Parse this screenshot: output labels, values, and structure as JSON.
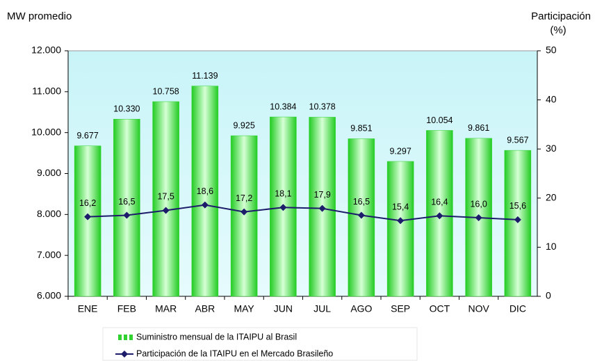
{
  "chart_data": {
    "type": "bar",
    "y_label": "MW promedio",
    "y2_label": [
      "Participación",
      "(%)"
    ],
    "categories": [
      "ENE",
      "FEB",
      "MAR",
      "ABR",
      "MAY",
      "JUN",
      "JUL",
      "AGO",
      "SEP",
      "OCT",
      "NOV",
      "DIC"
    ],
    "series": [
      {
        "name": "Suministro mensual de la ITAIPU al Brasil",
        "type": "bar",
        "axis": "y",
        "color": "#2fd22f",
        "values": [
          9677,
          10330,
          10758,
          11139,
          9925,
          10384,
          10378,
          9851,
          9297,
          10054,
          9861,
          9567
        ],
        "value_labels": [
          "9.677",
          "10.330",
          "10.758",
          "11.139",
          "9.925",
          "10.384",
          "10.378",
          "9.851",
          "9.297",
          "10.054",
          "9.861",
          "9.567"
        ]
      },
      {
        "name": "Participación de la ITAIPU en el Mercado Brasileño",
        "type": "line",
        "axis": "y2",
        "color": "#1c1c6b",
        "values": [
          16.2,
          16.5,
          17.5,
          18.6,
          17.2,
          18.1,
          17.9,
          16.5,
          15.4,
          16.4,
          16.0,
          15.6
        ],
        "value_labels": [
          "16,2",
          "16,5",
          "17,5",
          "18,6",
          "17,2",
          "18,1",
          "17,9",
          "16,5",
          "15,4",
          "16,4",
          "16,0",
          "15,6"
        ]
      }
    ],
    "ylim": [
      6000,
      12000
    ],
    "yticks": [
      {
        "value": 6000,
        "label": "6.000"
      },
      {
        "value": 7000,
        "label": "7.000"
      },
      {
        "value": 8000,
        "label": "8.000"
      },
      {
        "value": 9000,
        "label": "9.000"
      },
      {
        "value": 10000,
        "label": "10.000"
      },
      {
        "value": 11000,
        "label": "11.000"
      },
      {
        "value": 12000,
        "label": "12.000"
      }
    ],
    "y2lim": [
      0,
      50
    ],
    "y2ticks": [
      0,
      10,
      20,
      30,
      40,
      50
    ],
    "legend": "bottom"
  }
}
